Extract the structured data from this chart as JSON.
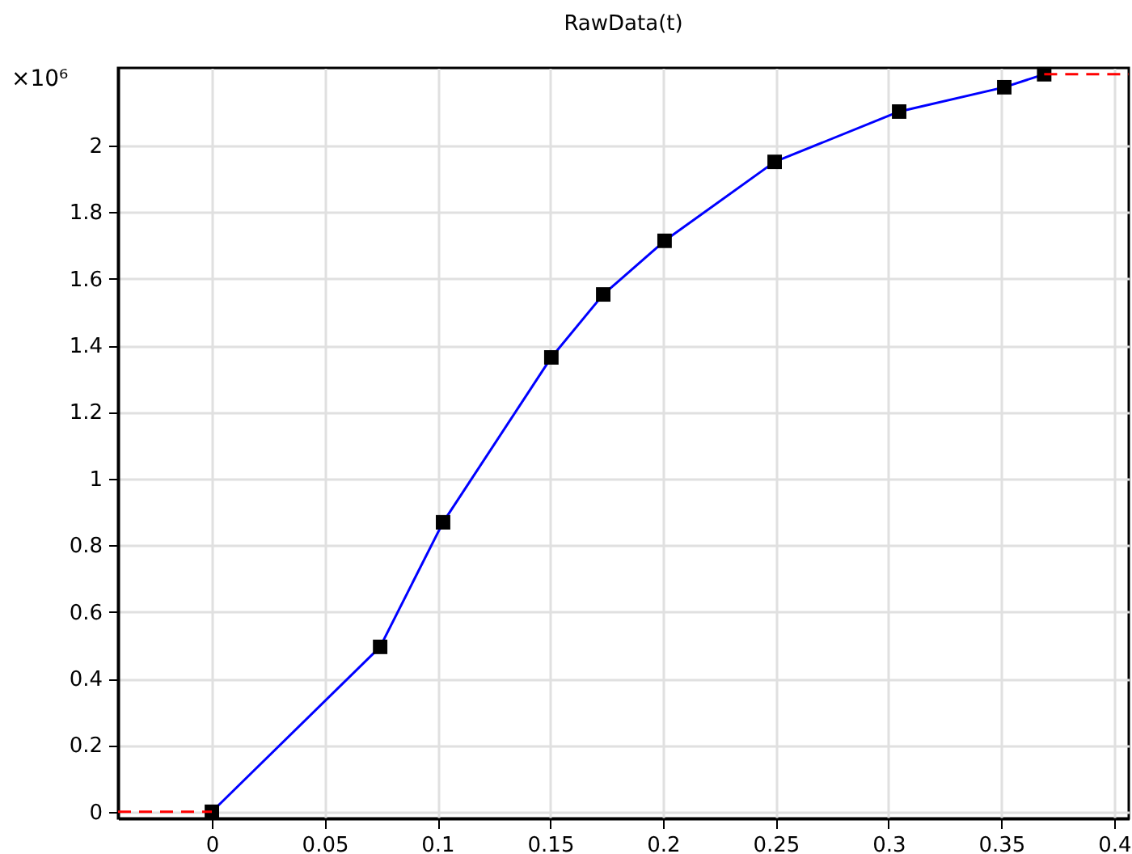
{
  "chart_data": {
    "type": "line",
    "title": "RawData(t)",
    "annotations": [
      "×10⁶"
    ],
    "xlim": [
      -0.0416,
      0.4065
    ],
    "xticks": [
      0,
      0.05,
      0.1,
      0.15,
      0.2,
      0.25,
      0.3,
      0.35,
      0.4
    ],
    "ylim": [
      -0.02,
      2.233
    ],
    "yticks": [
      0,
      0.2,
      0.4,
      0.6,
      0.8,
      1,
      1.2,
      1.4,
      1.6,
      1.8,
      2
    ],
    "grid": true,
    "series": [
      {
        "color": "#0000ff",
        "marker": "square",
        "line_style": "solid",
        "x": [
          0,
          0.0746,
          0.1025,
          0.1505,
          0.1735,
          0.2007,
          0.2495,
          0.3047,
          0.3513,
          0.369
        ],
        "values": [
          0,
          0.495,
          0.869,
          1.364,
          1.553,
          1.714,
          1.951,
          2.102,
          2.175,
          2.214
        ]
      },
      {
        "color": "#ff0000",
        "marker": "none",
        "line_style": "dashed",
        "x": [
          -0.0416,
          0
        ],
        "values": [
          0,
          0
        ]
      },
      {
        "color": "#ff0000",
        "marker": "none",
        "line_style": "dashed",
        "x": [
          0.369,
          0.4065
        ],
        "values": [
          2.214,
          2.214
        ]
      }
    ]
  }
}
